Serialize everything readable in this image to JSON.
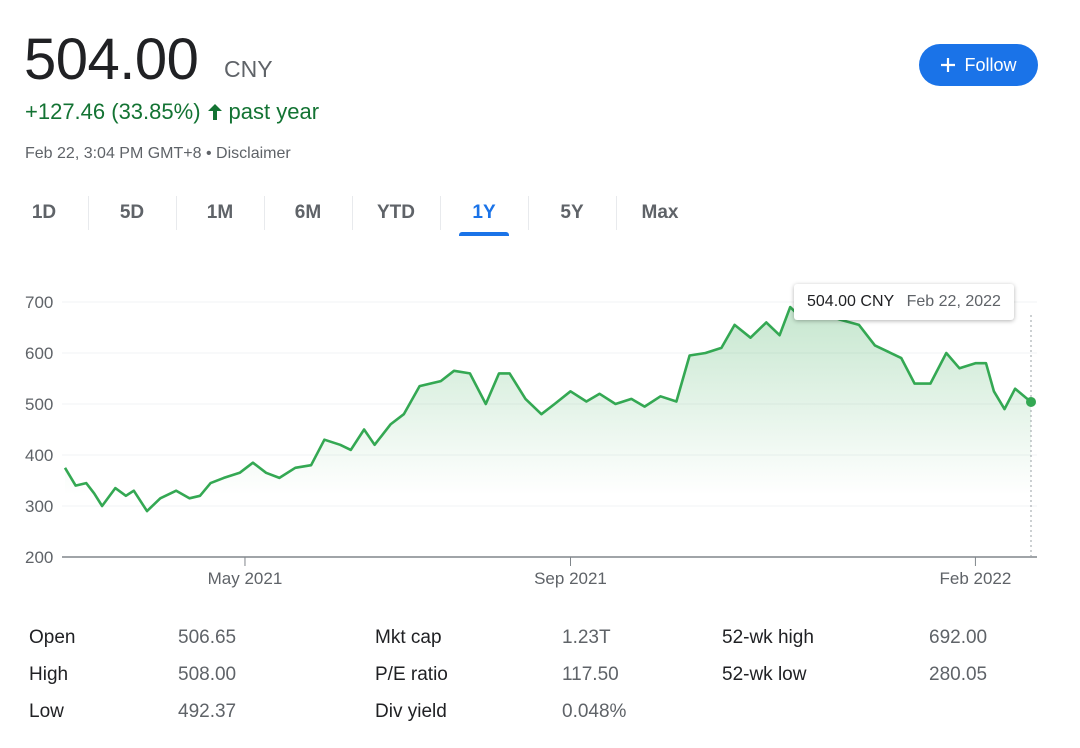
{
  "header": {
    "price": "504.00",
    "currency": "CNY",
    "change": "+127.46 (33.85%)",
    "change_icon": "arrow-up-icon",
    "change_period": "past year",
    "timestamp": "Feb 22, 3:04 PM GMT+8",
    "separator": "•",
    "disclaimer": "Disclaimer",
    "follow_label": "Follow",
    "follow_icon": "plus-icon"
  },
  "colors": {
    "accent": "#1a73e8",
    "positive": "#137333",
    "line": "#34a853"
  },
  "tabs": [
    {
      "label": "1D"
    },
    {
      "label": "5D"
    },
    {
      "label": "1M"
    },
    {
      "label": "6M"
    },
    {
      "label": "YTD"
    },
    {
      "label": "1Y",
      "active": true
    },
    {
      "label": "5Y"
    },
    {
      "label": "Max"
    }
  ],
  "tooltip": {
    "price": "504.00 CNY",
    "date": "Feb 22, 2022"
  },
  "chart_data": {
    "type": "area",
    "ylim": [
      200,
      700
    ],
    "yticks": [
      "200",
      "300",
      "400",
      "500",
      "600",
      "700"
    ],
    "xticks": [
      {
        "label": "May 2021",
        "date": "2021-05-01"
      },
      {
        "label": "Sep 2021",
        "date": "2021-09-01"
      },
      {
        "label": "Feb 2022",
        "date": "2022-02-01"
      }
    ],
    "grid": true,
    "x": [
      "2021-02-22",
      "2021-02-26",
      "2021-03-02",
      "2021-03-05",
      "2021-03-08",
      "2021-03-13",
      "2021-03-17",
      "2021-03-20",
      "2021-03-25",
      "2021-03-30",
      "2021-04-05",
      "2021-04-10",
      "2021-04-14",
      "2021-04-18",
      "2021-04-23",
      "2021-04-29",
      "2021-05-04",
      "2021-05-09",
      "2021-05-14",
      "2021-05-20",
      "2021-05-26",
      "2021-05-31",
      "2021-06-06",
      "2021-06-10",
      "2021-06-15",
      "2021-06-19",
      "2021-06-25",
      "2021-06-30",
      "2021-07-06",
      "2021-07-14",
      "2021-07-19",
      "2021-07-25",
      "2021-07-31",
      "2021-08-05",
      "2021-08-09",
      "2021-08-15",
      "2021-08-21",
      "2021-08-26",
      "2021-09-01",
      "2021-09-07",
      "2021-09-12",
      "2021-09-18",
      "2021-09-24",
      "2021-09-29",
      "2021-10-05",
      "2021-10-11",
      "2021-10-16",
      "2021-10-22",
      "2021-10-28",
      "2021-11-02",
      "2021-11-08",
      "2021-11-14",
      "2021-11-19",
      "2021-11-23",
      "2021-11-27",
      "2021-12-04",
      "2021-12-12",
      "2021-12-19",
      "2021-12-25",
      "2021-12-29",
      "2022-01-04",
      "2022-01-09",
      "2022-01-15",
      "2022-01-21",
      "2022-01-26",
      "2022-02-01",
      "2022-02-05",
      "2022-02-08",
      "2022-02-12",
      "2022-02-16",
      "2022-02-22"
    ],
    "values": [
      375,
      340,
      345,
      325,
      300,
      335,
      320,
      330,
      290,
      315,
      330,
      315,
      320,
      345,
      355,
      365,
      385,
      365,
      355,
      375,
      380,
      430,
      420,
      410,
      450,
      420,
      460,
      480,
      535,
      545,
      565,
      560,
      500,
      560,
      560,
      510,
      480,
      500,
      525,
      505,
      520,
      500,
      510,
      495,
      515,
      505,
      595,
      600,
      610,
      655,
      630,
      660,
      635,
      690,
      670,
      680,
      665,
      655,
      615,
      605,
      590,
      540,
      540,
      600,
      570,
      580,
      580,
      525,
      490,
      530,
      504
    ]
  },
  "stats": [
    {
      "label": "Open",
      "value": "506.65"
    },
    {
      "label": "High",
      "value": "508.00"
    },
    {
      "label": "Low",
      "value": "492.37"
    },
    {
      "label": "Mkt cap",
      "value": "1.23T"
    },
    {
      "label": "P/E ratio",
      "value": "117.50"
    },
    {
      "label": "Div yield",
      "value": "0.048%"
    },
    {
      "label": "52-wk high",
      "value": "692.00"
    },
    {
      "label": "52-wk low",
      "value": "280.05"
    }
  ]
}
